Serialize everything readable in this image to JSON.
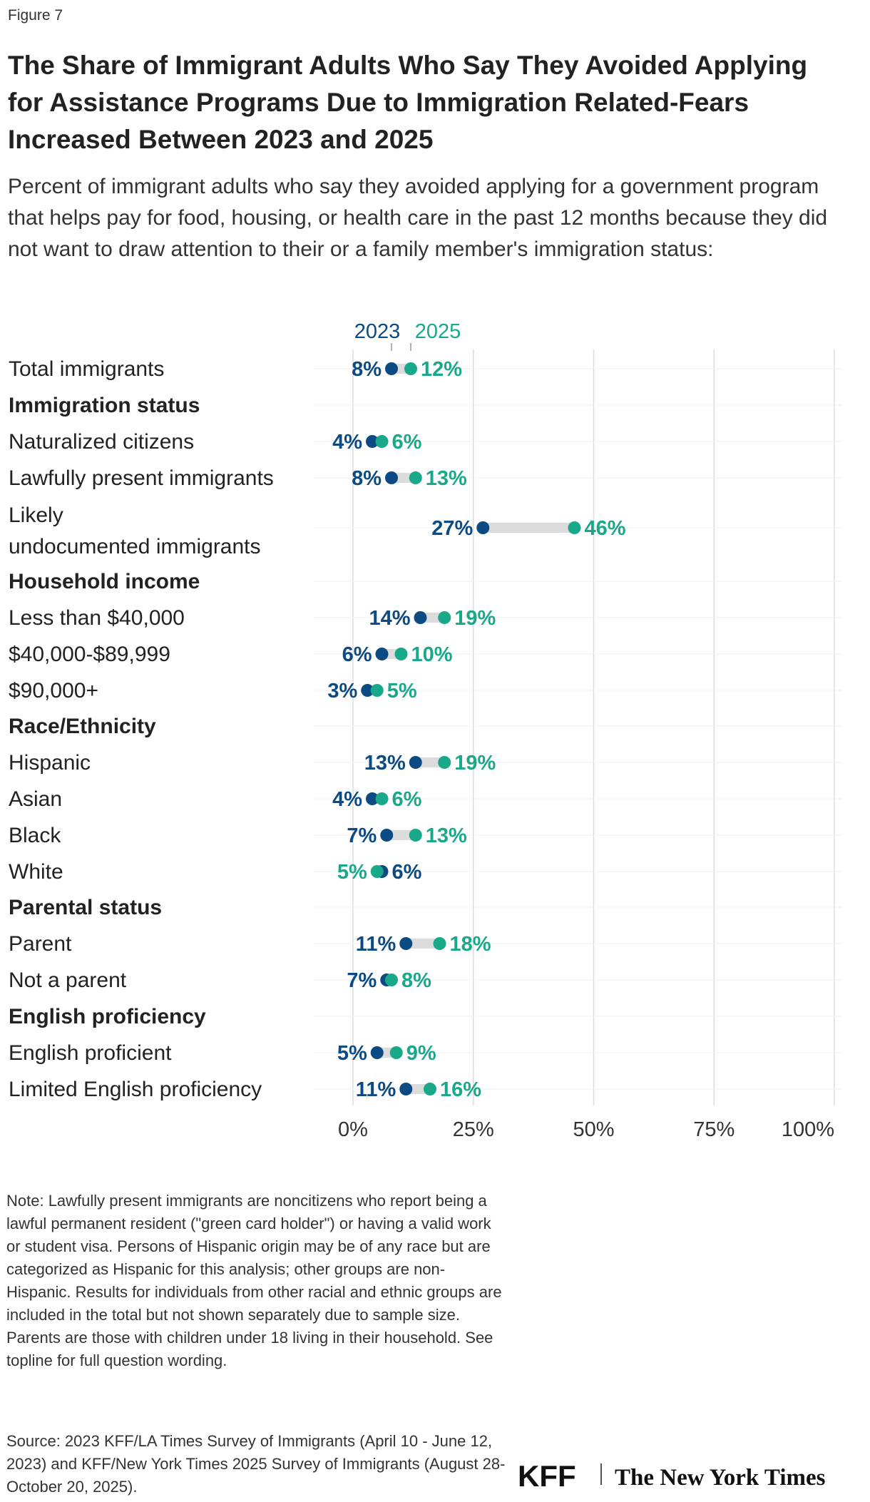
{
  "figure_label": "Figure 7",
  "title": "The Share of Immigrant Adults Who Say They Avoided Applying for Assistance Programs Due to Immigration Related-Fears Increased Between 2023 and 2025",
  "subtitle": "Percent of immigrant adults who say they avoided applying for a government program that helps pay for food, housing, or health care in the past 12 months because they did not want to draw attention to their or a family member's immigration status:",
  "chart_data": {
    "type": "dot",
    "series": [
      {
        "name": "2023",
        "color": "#0b4a82"
      },
      {
        "name": "2025",
        "color": "#1aa88a"
      }
    ],
    "xlim": [
      0,
      100
    ],
    "x_ticks": [
      "0%",
      "25%",
      "50%",
      "75%",
      "100%"
    ],
    "x_tick_values": [
      0,
      25,
      50,
      75,
      100
    ],
    "grid": true,
    "legend_placement": "top, above the first row",
    "rows": [
      {
        "label": "Total immigrants",
        "v2023": 8,
        "v2025": 12,
        "l2023": "8%",
        "l2025": "12%"
      },
      {
        "label": "Immigration status",
        "header": true
      },
      {
        "label": "Naturalized citizens",
        "v2023": 4,
        "v2025": 6,
        "l2023": "4%",
        "l2025": "6%"
      },
      {
        "label": "Lawfully present immigrants",
        "v2023": 8,
        "v2025": 13,
        "l2023": "8%",
        "l2025": "13%"
      },
      {
        "label": "Likely undocumented immigrants",
        "lines": [
          "Likely",
          "undocumented immigrants"
        ],
        "v2023": 27,
        "v2025": 46,
        "l2023": "27%",
        "l2025": "46%"
      },
      {
        "label": "Household income",
        "header": true
      },
      {
        "label": "Less than $40,000",
        "v2023": 14,
        "v2025": 19,
        "l2023": "14%",
        "l2025": "19%"
      },
      {
        "label": "$40,000-$89,999",
        "v2023": 6,
        "v2025": 10,
        "l2023": "6%",
        "l2025": "10%"
      },
      {
        "label": "$90,000+",
        "v2023": 3,
        "v2025": 5,
        "l2023": "3%",
        "l2025": "5%"
      },
      {
        "label": "Race/Ethnicity",
        "header": true
      },
      {
        "label": "Hispanic",
        "v2023": 13,
        "v2025": 19,
        "l2023": "13%",
        "l2025": "19%"
      },
      {
        "label": "Asian",
        "v2023": 4,
        "v2025": 6,
        "l2023": "4%",
        "l2025": "6%"
      },
      {
        "label": "Black",
        "v2023": 7,
        "v2025": 13,
        "l2023": "7%",
        "l2025": "13%"
      },
      {
        "label": "White",
        "v2023": 6,
        "v2025": 5,
        "l2023": "6%",
        "l2025": "5%"
      },
      {
        "label": "Parental status",
        "header": true
      },
      {
        "label": "Parent",
        "v2023": 11,
        "v2025": 18,
        "l2023": "11%",
        "l2025": "18%"
      },
      {
        "label": "Not a parent",
        "v2023": 7,
        "v2025": 8,
        "l2023": "7%",
        "l2025": "8%"
      },
      {
        "label": "English proficiency",
        "header": true
      },
      {
        "label": "English proficient",
        "v2023": 5,
        "v2025": 9,
        "l2023": "5%",
        "l2025": "9%"
      },
      {
        "label": "Limited English proficiency",
        "v2023": 11,
        "v2025": 16,
        "l2023": "11%",
        "l2025": "16%"
      }
    ]
  },
  "note": "Note: Lawfully present immigrants are noncitizens who report being a lawful permanent resident (\"green card holder\") or having a valid work or student visa. Persons of Hispanic origin may be of any race but are categorized as Hispanic for this analysis; other groups are non-Hispanic. Results for individuals from other racial and ethnic groups are included in the total but not shown separately due to sample size. Parents are those with children under 18 living in their household. See topline for full question wording.",
  "source": "Source: 2023 KFF/LA Times Survey of Immigrants (April 10 - June 12, 2023) and KFF/New York Times 2025 Survey of Immigrants (August 28-October 20, 2025).",
  "logos": {
    "kff": "KFF",
    "nyt": "The New York Times"
  }
}
